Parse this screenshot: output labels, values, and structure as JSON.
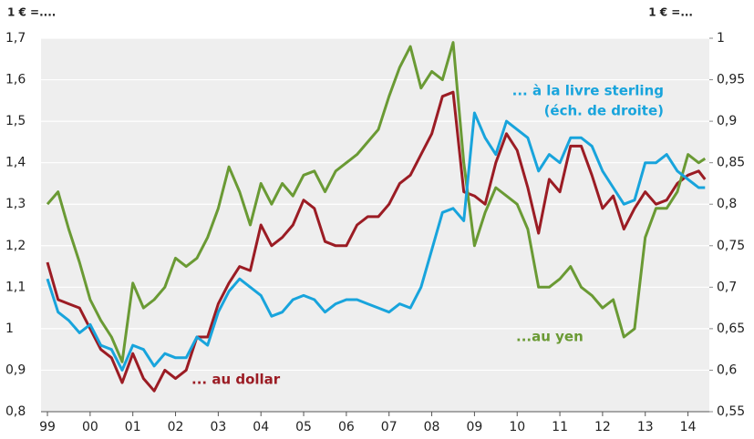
{
  "chart_data": {
    "type": "line",
    "y_axis_label": "1 € =....",
    "y2_axis_label": "1 € =...",
    "annotations": [
      "... au dollar",
      "...au yen",
      "... à la livre sterling",
      "(éch. de droite)"
    ],
    "x": [
      1999,
      1999.25,
      1999.5,
      1999.75,
      2000,
      2000.25,
      2000.5,
      2000.75,
      2001,
      2001.25,
      2001.5,
      2001.75,
      2002,
      2002.25,
      2002.5,
      2002.75,
      2003,
      2003.25,
      2003.5,
      2003.75,
      2004,
      2004.25,
      2004.5,
      2004.75,
      2005,
      2005.25,
      2005.5,
      2005.75,
      2006,
      2006.25,
      2006.5,
      2006.75,
      2007,
      2007.25,
      2007.5,
      2007.75,
      2008,
      2008.25,
      2008.5,
      2008.75,
      2009,
      2009.25,
      2009.5,
      2009.75,
      2010,
      2010.25,
      2010.5,
      2010.75,
      2011,
      2011.25,
      2011.5,
      2011.75,
      2012,
      2012.25,
      2012.5,
      2012.75,
      2013,
      2013.25,
      2013.5,
      2013.75,
      2014,
      2014.25,
      2014.4
    ],
    "series": [
      {
        "name": "dollar",
        "color": "#9b1c24",
        "axis": "y",
        "values": [
          1.16,
          1.07,
          1.06,
          1.05,
          1.0,
          0.95,
          0.93,
          0.87,
          0.94,
          0.88,
          0.85,
          0.9,
          0.88,
          0.9,
          0.98,
          0.98,
          1.06,
          1.11,
          1.15,
          1.14,
          1.25,
          1.2,
          1.22,
          1.25,
          1.31,
          1.29,
          1.21,
          1.2,
          1.2,
          1.25,
          1.27,
          1.27,
          1.3,
          1.35,
          1.37,
          1.42,
          1.47,
          1.56,
          1.57,
          1.33,
          1.32,
          1.3,
          1.4,
          1.47,
          1.43,
          1.34,
          1.23,
          1.36,
          1.33,
          1.44,
          1.44,
          1.37,
          1.29,
          1.32,
          1.24,
          1.29,
          1.33,
          1.3,
          1.31,
          1.35,
          1.37,
          1.38,
          1.36
        ]
      },
      {
        "name": "yen",
        "color": "#6a9a34",
        "axis": "y",
        "values": [
          1.3,
          1.33,
          1.24,
          1.16,
          1.07,
          1.02,
          0.98,
          0.92,
          1.11,
          1.05,
          1.07,
          1.1,
          1.17,
          1.15,
          1.17,
          1.22,
          1.29,
          1.39,
          1.33,
          1.25,
          1.35,
          1.3,
          1.35,
          1.32,
          1.37,
          1.38,
          1.33,
          1.38,
          1.4,
          1.42,
          1.45,
          1.48,
          1.56,
          1.63,
          1.68,
          1.58,
          1.62,
          1.6,
          1.69,
          1.4,
          1.2,
          1.28,
          1.34,
          1.32,
          1.3,
          1.24,
          1.1,
          1.1,
          1.12,
          1.15,
          1.1,
          1.08,
          1.05,
          1.07,
          0.98,
          1.0,
          1.22,
          1.29,
          1.29,
          1.33,
          1.42,
          1.4,
          1.41
        ]
      },
      {
        "name": "livre sterling",
        "color": "#18a4dc",
        "axis": "y2",
        "values": [
          0.71,
          0.67,
          0.66,
          0.645,
          0.655,
          0.63,
          0.625,
          0.6,
          0.63,
          0.625,
          0.605,
          0.62,
          0.615,
          0.615,
          0.64,
          0.63,
          0.67,
          0.695,
          0.71,
          0.7,
          0.69,
          0.665,
          0.67,
          0.685,
          0.69,
          0.685,
          0.67,
          0.68,
          0.685,
          0.685,
          0.68,
          0.675,
          0.67,
          0.68,
          0.675,
          0.7,
          0.745,
          0.79,
          0.795,
          0.78,
          0.91,
          0.88,
          0.86,
          0.9,
          0.89,
          0.88,
          0.84,
          0.86,
          0.85,
          0.88,
          0.88,
          0.87,
          0.84,
          0.82,
          0.8,
          0.805,
          0.85,
          0.85,
          0.86,
          0.84,
          0.83,
          0.82,
          0.82
        ]
      }
    ],
    "xlim": [
      1998.85,
      2014.5
    ],
    "xticks": [
      {
        "value": 1999,
        "label": "99"
      },
      {
        "value": 2000,
        "label": "00"
      },
      {
        "value": 2001,
        "label": "01"
      },
      {
        "value": 2002,
        "label": "02"
      },
      {
        "value": 2003,
        "label": "03"
      },
      {
        "value": 2004,
        "label": "04"
      },
      {
        "value": 2005,
        "label": "05"
      },
      {
        "value": 2006,
        "label": "06"
      },
      {
        "value": 2007,
        "label": "07"
      },
      {
        "value": 2008,
        "label": "08"
      },
      {
        "value": 2009,
        "label": "09"
      },
      {
        "value": 2010,
        "label": "10"
      },
      {
        "value": 2011,
        "label": "11"
      },
      {
        "value": 2012,
        "label": "12"
      },
      {
        "value": 2013,
        "label": "13"
      },
      {
        "value": 2014,
        "label": "14"
      }
    ],
    "ylim": [
      0.8,
      1.7
    ],
    "yticks": [
      {
        "value": 0.8,
        "label": "0,8"
      },
      {
        "value": 0.9,
        "label": "0,9"
      },
      1,
      {
        "value": 1.1,
        "label": "1,1"
      },
      {
        "value": 1.2,
        "label": "1,2"
      },
      {
        "value": 1.3,
        "label": "1,3"
      },
      {
        "value": 1.4,
        "label": "1,4"
      },
      {
        "value": 1.5,
        "label": "1,5"
      },
      {
        "value": 1.6,
        "label": "1,6"
      },
      {
        "value": 1.7,
        "label": "1,7"
      }
    ],
    "y2lim": [
      0.55,
      1
    ],
    "y2ticks": [
      {
        "value": 0.55,
        "label": "0,55"
      },
      {
        "value": 0.6,
        "label": "0,6"
      },
      {
        "value": 0.65,
        "label": "0,65"
      },
      {
        "value": 0.7,
        "label": "0,7"
      },
      {
        "value": 0.75,
        "label": "0,75"
      },
      {
        "value": 0.8,
        "label": "0,8"
      },
      {
        "value": 0.85,
        "label": "0,85"
      },
      {
        "value": 0.9,
        "label": "0,9"
      },
      {
        "value": 0.95,
        "label": "0,95"
      },
      1
    ],
    "grid": true
  }
}
